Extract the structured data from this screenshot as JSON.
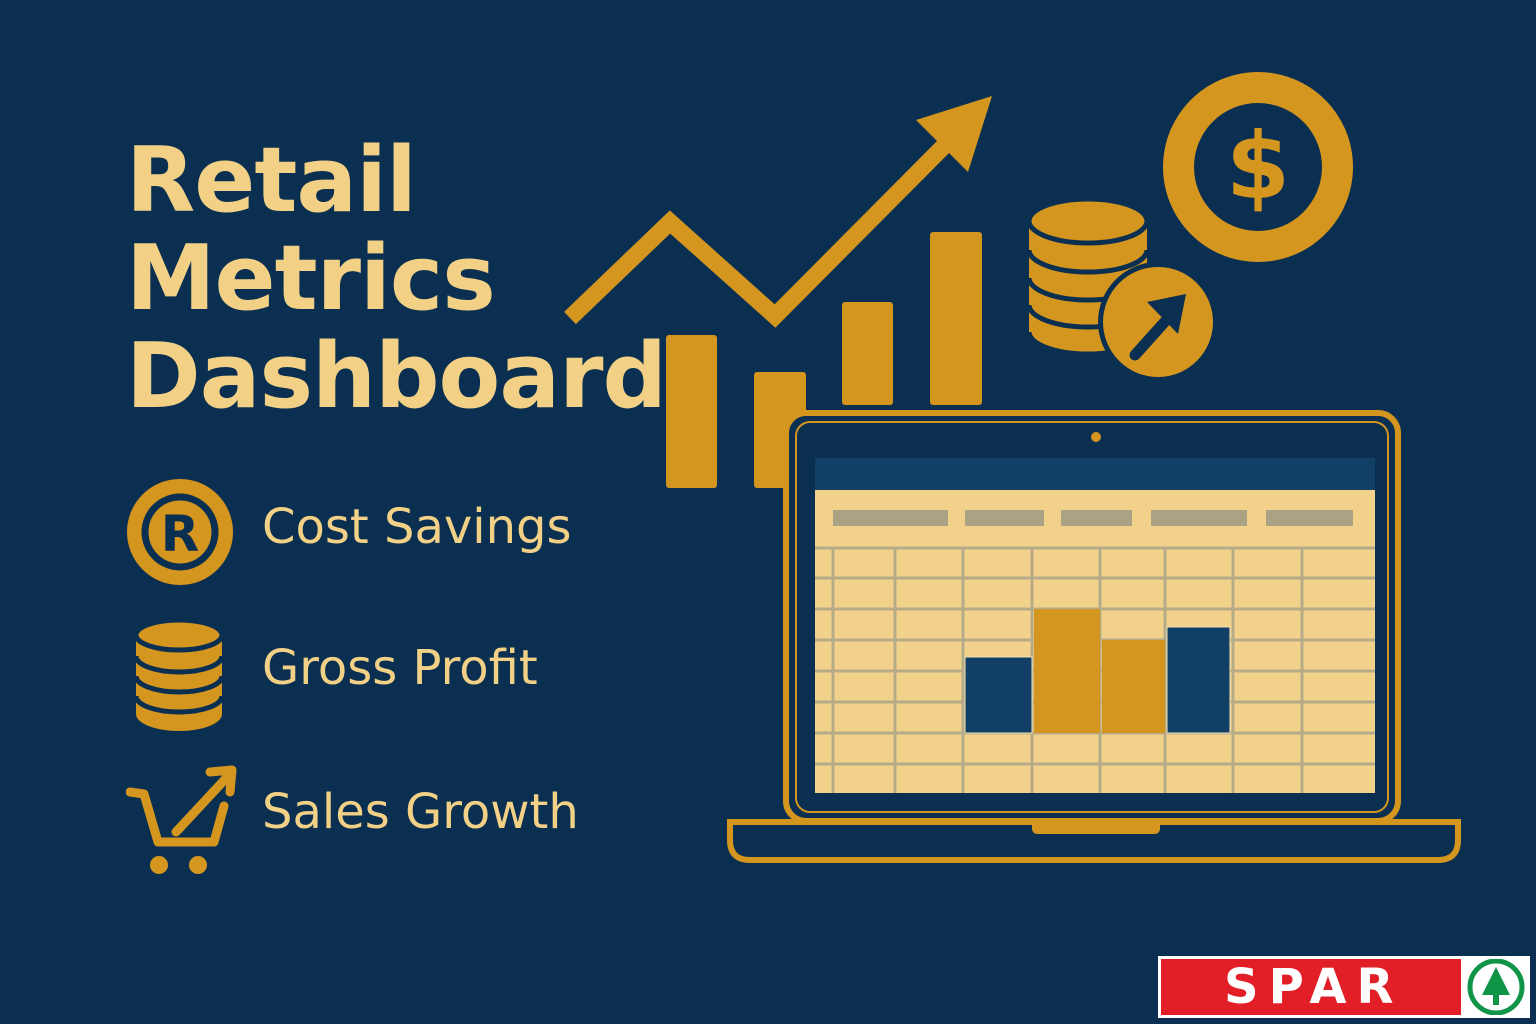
{
  "title": {
    "lines": [
      "Retail",
      "Metrics",
      "Dashboard"
    ]
  },
  "metrics": [
    {
      "label": "Cost Savings",
      "icon": "rand-coin-icon"
    },
    {
      "label": "Gross Profit",
      "icon": "coin-stack-icon"
    },
    {
      "label": "Sales Growth",
      "icon": "cart-growth-icon"
    }
  ],
  "logo": {
    "text": "SPAR"
  },
  "colors": {
    "background": "#0a2f51",
    "gold": "#d4961f",
    "text": "#f2d186",
    "logo_red": "#e21f26",
    "logo_green": "#109448"
  }
}
